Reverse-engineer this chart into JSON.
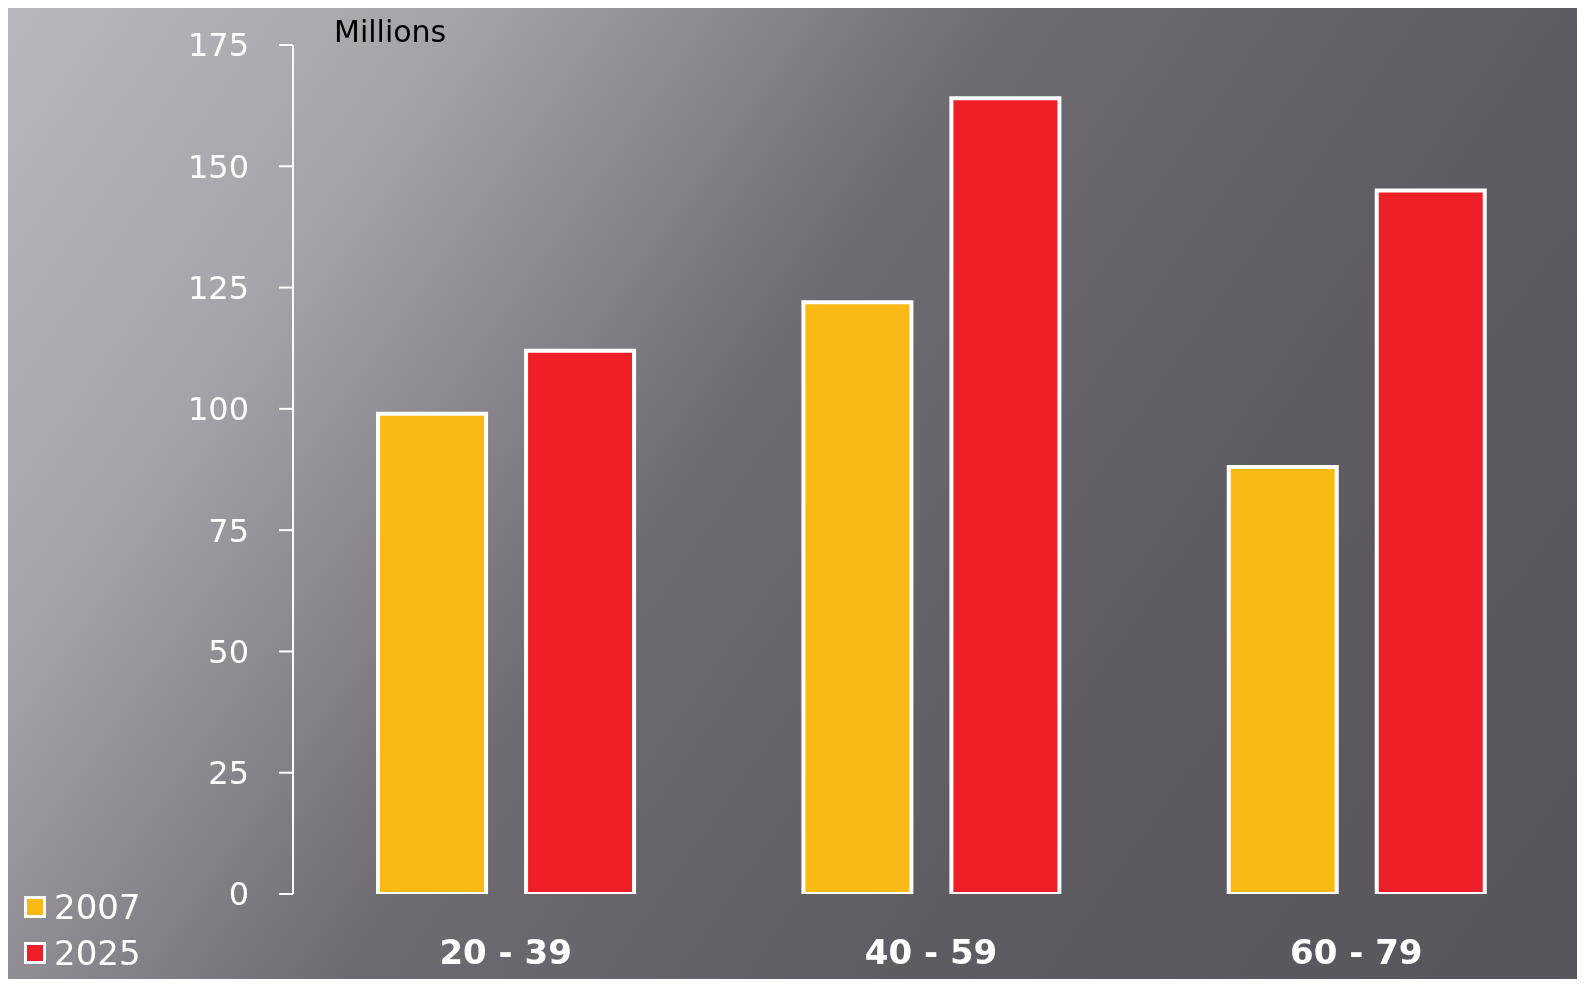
{
  "chart_data": {
    "type": "bar",
    "ylabel": "Millions",
    "categories": [
      "20 - 39",
      "40 - 59",
      "60 - 79"
    ],
    "series": [
      {
        "name": "2007",
        "color": "#fbb916",
        "values": [
          99,
          122,
          88
        ]
      },
      {
        "name": "2025",
        "color": "#ee1f26",
        "values": [
          112,
          164,
          145
        ]
      }
    ],
    "ylim": [
      0,
      175
    ],
    "yticks": [
      0,
      25,
      50,
      75,
      100,
      125,
      150,
      175
    ],
    "legend": "bottom left"
  }
}
